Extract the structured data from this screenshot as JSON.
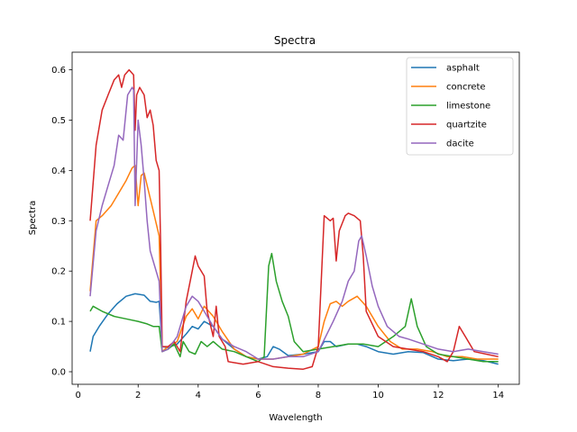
{
  "chart_data": {
    "type": "line",
    "title": "Spectra",
    "xlabel": "Wavelength",
    "ylabel": "Spectra",
    "xlim": [
      -0.2,
      14.7
    ],
    "ylim": [
      -0.025,
      0.635
    ],
    "xticks": [
      0,
      2,
      4,
      6,
      8,
      10,
      12,
      14
    ],
    "yticks": [
      0.0,
      0.1,
      0.2,
      0.3,
      0.4,
      0.5,
      0.6
    ],
    "grid": false,
    "legend_position": "top-right",
    "series": [
      {
        "name": "asphalt",
        "color": "#1f77b4",
        "points": [
          [
            0.4,
            0.04
          ],
          [
            0.5,
            0.07
          ],
          [
            0.7,
            0.09
          ],
          [
            1.0,
            0.115
          ],
          [
            1.3,
            0.135
          ],
          [
            1.6,
            0.15
          ],
          [
            1.9,
            0.155
          ],
          [
            2.2,
            0.152
          ],
          [
            2.4,
            0.14
          ],
          [
            2.6,
            0.138
          ],
          [
            2.7,
            0.14
          ],
          [
            2.8,
            0.05
          ],
          [
            3.0,
            0.048
          ],
          [
            3.3,
            0.055
          ],
          [
            3.6,
            0.075
          ],
          [
            3.8,
            0.09
          ],
          [
            4.0,
            0.085
          ],
          [
            4.2,
            0.1
          ],
          [
            4.5,
            0.09
          ],
          [
            4.8,
            0.065
          ],
          [
            5.2,
            0.045
          ],
          [
            5.6,
            0.03
          ],
          [
            6.0,
            0.025
          ],
          [
            6.3,
            0.03
          ],
          [
            6.5,
            0.05
          ],
          [
            6.7,
            0.045
          ],
          [
            7.0,
            0.032
          ],
          [
            7.5,
            0.035
          ],
          [
            8.0,
            0.04
          ],
          [
            8.2,
            0.06
          ],
          [
            8.4,
            0.06
          ],
          [
            8.6,
            0.05
          ],
          [
            9.0,
            0.055
          ],
          [
            9.3,
            0.055
          ],
          [
            9.6,
            0.05
          ],
          [
            10.0,
            0.04
          ],
          [
            10.5,
            0.035
          ],
          [
            11.0,
            0.04
          ],
          [
            11.5,
            0.038
          ],
          [
            12.0,
            0.025
          ],
          [
            12.5,
            0.022
          ],
          [
            13.0,
            0.025
          ],
          [
            13.5,
            0.022
          ],
          [
            14.0,
            0.015
          ]
        ]
      },
      {
        "name": "concrete",
        "color": "#ff7f0e",
        "points": [
          [
            0.4,
            0.16
          ],
          [
            0.6,
            0.3
          ],
          [
            0.8,
            0.31
          ],
          [
            1.1,
            0.33
          ],
          [
            1.4,
            0.36
          ],
          [
            1.6,
            0.38
          ],
          [
            1.8,
            0.405
          ],
          [
            1.9,
            0.41
          ],
          [
            2.0,
            0.33
          ],
          [
            2.1,
            0.39
          ],
          [
            2.2,
            0.395
          ],
          [
            2.5,
            0.32
          ],
          [
            2.7,
            0.27
          ],
          [
            2.8,
            0.04
          ],
          [
            3.0,
            0.05
          ],
          [
            3.3,
            0.06
          ],
          [
            3.6,
            0.11
          ],
          [
            3.8,
            0.125
          ],
          [
            4.0,
            0.105
          ],
          [
            4.2,
            0.13
          ],
          [
            4.5,
            0.11
          ],
          [
            4.8,
            0.08
          ],
          [
            5.2,
            0.045
          ],
          [
            5.6,
            0.03
          ],
          [
            6.0,
            0.025
          ],
          [
            6.5,
            0.025
          ],
          [
            7.0,
            0.03
          ],
          [
            7.5,
            0.035
          ],
          [
            8.0,
            0.05
          ],
          [
            8.2,
            0.1
          ],
          [
            8.4,
            0.135
          ],
          [
            8.6,
            0.14
          ],
          [
            8.8,
            0.13
          ],
          [
            9.0,
            0.14
          ],
          [
            9.3,
            0.15
          ],
          [
            9.6,
            0.13
          ],
          [
            10.0,
            0.09
          ],
          [
            10.4,
            0.06
          ],
          [
            10.8,
            0.045
          ],
          [
            11.3,
            0.045
          ],
          [
            11.8,
            0.04
          ],
          [
            12.3,
            0.03
          ],
          [
            12.8,
            0.03
          ],
          [
            13.3,
            0.025
          ],
          [
            14.0,
            0.025
          ]
        ]
      },
      {
        "name": "limestone",
        "color": "#2ca02c",
        "points": [
          [
            0.4,
            0.12
          ],
          [
            0.5,
            0.13
          ],
          [
            0.8,
            0.12
          ],
          [
            1.2,
            0.11
          ],
          [
            1.6,
            0.105
          ],
          [
            2.0,
            0.1
          ],
          [
            2.3,
            0.095
          ],
          [
            2.5,
            0.09
          ],
          [
            2.7,
            0.09
          ],
          [
            2.8,
            0.04
          ],
          [
            3.0,
            0.045
          ],
          [
            3.2,
            0.055
          ],
          [
            3.4,
            0.03
          ],
          [
            3.5,
            0.06
          ],
          [
            3.7,
            0.04
          ],
          [
            3.9,
            0.035
          ],
          [
            4.1,
            0.06
          ],
          [
            4.3,
            0.05
          ],
          [
            4.5,
            0.06
          ],
          [
            4.8,
            0.045
          ],
          [
            5.2,
            0.04
          ],
          [
            5.6,
            0.03
          ],
          [
            6.0,
            0.02
          ],
          [
            6.2,
            0.03
          ],
          [
            6.35,
            0.21
          ],
          [
            6.45,
            0.235
          ],
          [
            6.6,
            0.18
          ],
          [
            6.8,
            0.14
          ],
          [
            7.0,
            0.11
          ],
          [
            7.2,
            0.06
          ],
          [
            7.5,
            0.04
          ],
          [
            8.0,
            0.045
          ],
          [
            8.5,
            0.05
          ],
          [
            9.0,
            0.055
          ],
          [
            9.5,
            0.055
          ],
          [
            10.0,
            0.05
          ],
          [
            10.5,
            0.07
          ],
          [
            10.9,
            0.09
          ],
          [
            11.1,
            0.145
          ],
          [
            11.3,
            0.09
          ],
          [
            11.6,
            0.05
          ],
          [
            12.0,
            0.035
          ],
          [
            12.5,
            0.03
          ],
          [
            13.0,
            0.025
          ],
          [
            13.5,
            0.02
          ],
          [
            14.0,
            0.02
          ]
        ]
      },
      {
        "name": "quartzite",
        "color": "#d62728",
        "points": [
          [
            0.4,
            0.3
          ],
          [
            0.6,
            0.45
          ],
          [
            0.8,
            0.52
          ],
          [
            1.0,
            0.55
          ],
          [
            1.2,
            0.58
          ],
          [
            1.35,
            0.59
          ],
          [
            1.45,
            0.565
          ],
          [
            1.55,
            0.59
          ],
          [
            1.7,
            0.6
          ],
          [
            1.85,
            0.59
          ],
          [
            1.9,
            0.48
          ],
          [
            1.95,
            0.55
          ],
          [
            2.05,
            0.565
          ],
          [
            2.2,
            0.55
          ],
          [
            2.3,
            0.505
          ],
          [
            2.4,
            0.52
          ],
          [
            2.5,
            0.49
          ],
          [
            2.6,
            0.42
          ],
          [
            2.7,
            0.4
          ],
          [
            2.75,
            0.25
          ],
          [
            2.8,
            0.05
          ],
          [
            3.0,
            0.05
          ],
          [
            3.2,
            0.06
          ],
          [
            3.4,
            0.04
          ],
          [
            3.6,
            0.14
          ],
          [
            3.8,
            0.2
          ],
          [
            3.9,
            0.23
          ],
          [
            4.0,
            0.21
          ],
          [
            4.2,
            0.19
          ],
          [
            4.3,
            0.12
          ],
          [
            4.5,
            0.07
          ],
          [
            4.6,
            0.13
          ],
          [
            4.7,
            0.07
          ],
          [
            4.9,
            0.05
          ],
          [
            5.0,
            0.02
          ],
          [
            5.5,
            0.015
          ],
          [
            6.0,
            0.02
          ],
          [
            6.5,
            0.01
          ],
          [
            7.0,
            0.007
          ],
          [
            7.5,
            0.005
          ],
          [
            7.8,
            0.01
          ],
          [
            8.0,
            0.05
          ],
          [
            8.2,
            0.31
          ],
          [
            8.4,
            0.3
          ],
          [
            8.5,
            0.305
          ],
          [
            8.6,
            0.22
          ],
          [
            8.7,
            0.28
          ],
          [
            8.9,
            0.31
          ],
          [
            9.0,
            0.315
          ],
          [
            9.2,
            0.31
          ],
          [
            9.4,
            0.3
          ],
          [
            9.5,
            0.23
          ],
          [
            9.6,
            0.12
          ],
          [
            10.0,
            0.07
          ],
          [
            10.5,
            0.05
          ],
          [
            11.0,
            0.045
          ],
          [
            11.5,
            0.04
          ],
          [
            12.0,
            0.03
          ],
          [
            12.3,
            0.02
          ],
          [
            12.5,
            0.04
          ],
          [
            12.7,
            0.09
          ],
          [
            12.9,
            0.07
          ],
          [
            13.2,
            0.04
          ],
          [
            13.6,
            0.035
          ],
          [
            14.0,
            0.03
          ]
        ]
      },
      {
        "name": "dacite",
        "color": "#9467bd",
        "points": [
          [
            0.4,
            0.15
          ],
          [
            0.6,
            0.28
          ],
          [
            0.8,
            0.33
          ],
          [
            1.0,
            0.37
          ],
          [
            1.2,
            0.41
          ],
          [
            1.35,
            0.47
          ],
          [
            1.5,
            0.46
          ],
          [
            1.65,
            0.55
          ],
          [
            1.8,
            0.565
          ],
          [
            1.85,
            0.56
          ],
          [
            1.9,
            0.33
          ],
          [
            2.0,
            0.5
          ],
          [
            2.1,
            0.45
          ],
          [
            2.2,
            0.38
          ],
          [
            2.3,
            0.3
          ],
          [
            2.4,
            0.24
          ],
          [
            2.5,
            0.22
          ],
          [
            2.7,
            0.18
          ],
          [
            2.8,
            0.04
          ],
          [
            3.0,
            0.045
          ],
          [
            3.3,
            0.07
          ],
          [
            3.6,
            0.13
          ],
          [
            3.8,
            0.15
          ],
          [
            4.0,
            0.14
          ],
          [
            4.2,
            0.12
          ],
          [
            4.5,
            0.09
          ],
          [
            4.8,
            0.065
          ],
          [
            5.2,
            0.05
          ],
          [
            5.6,
            0.04
          ],
          [
            6.0,
            0.025
          ],
          [
            6.5,
            0.025
          ],
          [
            7.0,
            0.03
          ],
          [
            7.5,
            0.03
          ],
          [
            8.0,
            0.04
          ],
          [
            8.5,
            0.1
          ],
          [
            8.8,
            0.14
          ],
          [
            9.0,
            0.18
          ],
          [
            9.2,
            0.2
          ],
          [
            9.35,
            0.26
          ],
          [
            9.45,
            0.27
          ],
          [
            9.6,
            0.23
          ],
          [
            9.8,
            0.17
          ],
          [
            10.0,
            0.13
          ],
          [
            10.3,
            0.09
          ],
          [
            10.7,
            0.07
          ],
          [
            11.0,
            0.065
          ],
          [
            11.5,
            0.055
          ],
          [
            12.0,
            0.045
          ],
          [
            12.5,
            0.04
          ],
          [
            13.0,
            0.045
          ],
          [
            13.5,
            0.04
          ],
          [
            14.0,
            0.035
          ]
        ]
      }
    ]
  }
}
